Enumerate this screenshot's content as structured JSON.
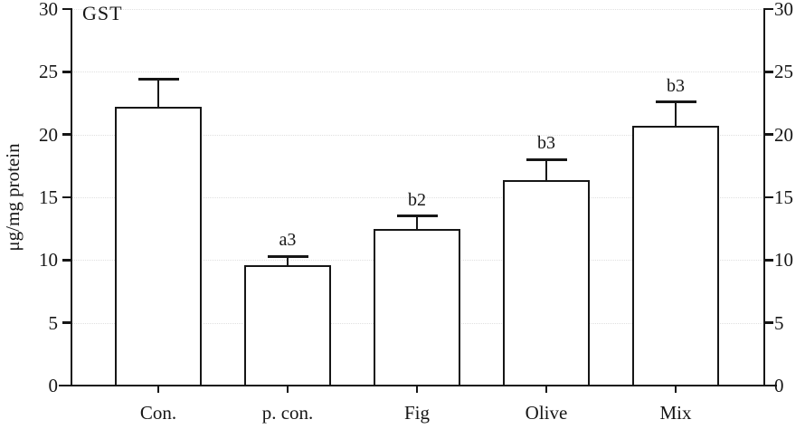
{
  "chart_data": {
    "type": "bar",
    "title": "GST",
    "ylabel": "μg/mg protein",
    "xlabel": "",
    "categories": [
      "Con.",
      "p. con.",
      "Fig",
      "Olive",
      "Mix"
    ],
    "values": [
      22.2,
      9.6,
      12.5,
      16.4,
      20.7
    ],
    "errors": [
      2.2,
      0.7,
      1.0,
      1.6,
      1.9
    ],
    "annotations": [
      "",
      "a3",
      "b2",
      "b3",
      "b3"
    ],
    "ylim": [
      0,
      30
    ],
    "yticks": [
      0,
      5,
      10,
      15,
      20,
      25,
      30
    ],
    "grid": true,
    "legend_position": "none",
    "axis_sides": "left-and-right",
    "colors": {
      "bar_fill": "#ffffff",
      "line": "#161616",
      "grid": "#e0e0e0",
      "text": "#161616"
    }
  }
}
